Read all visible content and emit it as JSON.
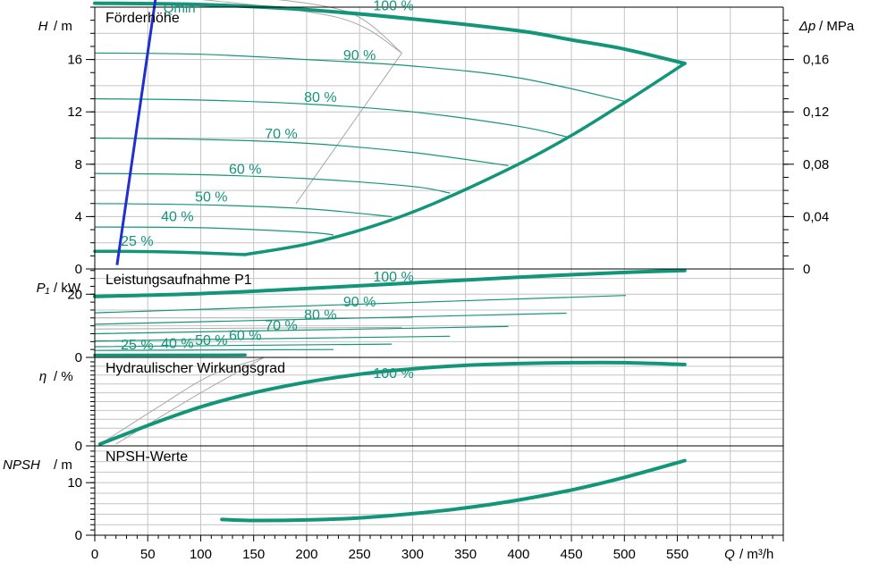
{
  "chart_data": {
    "type": "line",
    "colors": {
      "curve": "#13957a",
      "qmin": "#1f2fd0",
      "grid": "#c4c4c4",
      "iso": "#a8a8a8",
      "axis": "#000000"
    },
    "x": {
      "label_var": "Q",
      "label_unit": "/ m³/h",
      "ticks": [
        0,
        50,
        100,
        150,
        200,
        250,
        300,
        350,
        400,
        450,
        500,
        550
      ],
      "range": [
        0,
        650
      ]
    },
    "panels": [
      {
        "id": "head",
        "title": "Förderhöhe",
        "ylabel_var": "H",
        "ylabel_unit": "/ m",
        "ylim": [
          0,
          20
        ],
        "yticks": [
          0,
          4,
          8,
          12,
          16
        ],
        "right_axis": {
          "label_var": "Δp",
          "label_unit": "/ MPa",
          "ticks": [
            {
              "value": 0,
              "label": "0"
            },
            {
              "value": 0.04,
              "label": "0,04"
            },
            {
              "value": 0.08,
              "label": "0,08"
            },
            {
              "value": 0.12,
              "label": "0,12"
            },
            {
              "value": 0.16,
              "label": "0,16"
            }
          ]
        },
        "speed_curves": [
          {
            "name": "100 %",
            "x": [
              0,
              100,
              200,
              300,
              400,
              450,
              500,
              557
            ],
            "y": [
              20.3,
              20.2,
              19.8,
              19.1,
              18.2,
              17.5,
              16.8,
              15.7
            ],
            "label_at": [
              282,
              20.1
            ]
          },
          {
            "name": "90 %",
            "x": [
              0,
              100,
              200,
              300,
              400,
              501
            ],
            "y": [
              16.5,
              16.4,
              16.0,
              15.5,
              14.6,
              12.8
            ],
            "label_at": [
              250,
              16.3
            ]
          },
          {
            "name": "80 %",
            "x": [
              0,
              100,
              200,
              300,
              400,
              445
            ],
            "y": [
              13.0,
              12.9,
              12.6,
              12.0,
              10.9,
              10.1
            ],
            "label_at": [
              213,
              13.1
            ]
          },
          {
            "name": "70 %",
            "x": [
              0,
              100,
              200,
              300,
              390
            ],
            "y": [
              10.0,
              9.9,
              9.6,
              8.9,
              7.9
            ],
            "label_at": [
              176,
              10.3
            ]
          },
          {
            "name": "60 %",
            "x": [
              0,
              100,
              200,
              300,
              335
            ],
            "y": [
              7.3,
              7.2,
              6.9,
              6.3,
              5.8
            ],
            "label_at": [
              142,
              7.6
            ]
          },
          {
            "name": "50 %",
            "x": [
              0,
              100,
              200,
              280
            ],
            "y": [
              5.0,
              4.9,
              4.6,
              4.0
            ],
            "label_at": [
              110,
              5.5
            ]
          },
          {
            "name": "40 %",
            "x": [
              0,
              100,
              200,
              225
            ],
            "y": [
              3.2,
              3.15,
              2.8,
              2.6
            ],
            "label_at": [
              78,
              4.0
            ]
          },
          {
            "name": "25 %",
            "x": [
              0,
              70,
              142
            ],
            "y": [
              1.35,
              1.3,
              1.1
            ],
            "label_at": [
              40,
              2.1
            ]
          }
        ],
        "qmin_line": {
          "name": "Qmin",
          "x": [
            21,
            58
          ],
          "y": [
            0.3,
            21.0
          ],
          "label_at": [
            58,
            20.0
          ]
        },
        "limit_curve": {
          "x": [
            142,
            200,
            260,
            320,
            400,
            450,
            500,
            557
          ],
          "y": [
            1.1,
            1.9,
            3.2,
            5.0,
            8.0,
            10.2,
            12.7,
            15.7
          ]
        },
        "iso_efficiency_lines": [
          {
            "x": [
              88,
              230,
              290
            ],
            "y": [
              20.7,
              19.2,
              16.5
            ]
          },
          {
            "x": [
              150,
              240,
              290
            ],
            "y": [
              20.8,
              19.6,
              16.5
            ]
          },
          {
            "x": [
              290,
              190
            ],
            "y": [
              16.5,
              5.0
            ]
          }
        ]
      },
      {
        "id": "power",
        "title": "Leistungsaufnahme P1",
        "ylabel_var": "P₁",
        "ylabel_unit": "/ kW",
        "ylim": [
          0,
          28
        ],
        "yticks": [
          0,
          20
        ],
        "speed_curves": [
          {
            "name": "100 %",
            "x": [
              0,
              100,
              200,
              300,
              400,
              500,
              557
            ],
            "y": [
              19.3,
              20.2,
              21.8,
              23.6,
              25.4,
              26.9,
              27.5
            ],
            "label_at": [
              282,
              25.5
            ]
          },
          {
            "name": "90 %",
            "x": [
              0,
              501
            ],
            "y": [
              14.1,
              19.6
            ],
            "label_at": [
              250,
              17.6
            ]
          },
          {
            "name": "80 %",
            "x": [
              0,
              445
            ],
            "y": [
              10.5,
              14.0
            ],
            "label_at": [
              213,
              13.5
            ]
          },
          {
            "name": "70 %",
            "x": [
              0,
              390
            ],
            "y": [
              7.5,
              9.8
            ],
            "label_at": [
              176,
              10.1
            ]
          },
          {
            "name": "60 %",
            "x": [
              0,
              335
            ],
            "y": [
              5.2,
              6.7
            ],
            "label_at": [
              142,
              7.0
            ]
          },
          {
            "name": "50 %",
            "x": [
              0,
              280
            ],
            "y": [
              3.4,
              4.2
            ],
            "label_at": [
              110,
              5.4
            ]
          },
          {
            "name": "40 %",
            "x": [
              0,
              225
            ],
            "y": [
              2.2,
              2.5
            ],
            "label_at": [
              78,
              4.4
            ]
          },
          {
            "name": "25 %",
            "x": [
              0,
              142
            ],
            "y": [
              0.7,
              0.75
            ],
            "label_at": [
              40,
              4.0
            ]
          }
        ],
        "iso_efficiency_lines": [
          {
            "x": [
              0,
              300
            ],
            "y": [
              12.5,
              12.5
            ]
          },
          {
            "x": [
              0,
              290
            ],
            "y": [
              9.0,
              9.5
            ]
          }
        ]
      },
      {
        "id": "efficiency",
        "title": "Hydraulischer Wirkungsgrad",
        "ylabel_var": "η",
        "ylabel_unit": "/ %",
        "ylim": [
          0,
          100
        ],
        "yticks": [
          0
        ],
        "speed_curves": [
          {
            "name": "100 %",
            "x": [
              5,
              50,
              100,
              150,
              200,
              250,
              300,
              350,
              400,
              450,
              500,
              557
            ],
            "y": [
              2,
              23,
              44,
              60,
              72,
              81,
              87,
              91,
              93,
              94,
              94,
              92
            ],
            "label_at": [
              282,
              82
            ]
          }
        ],
        "iso_efficiency_lines": [
          {
            "x": [
              5,
              60,
              110,
              160
            ],
            "y": [
              2,
              44,
              80,
              100
            ]
          },
          {
            "x": [
              20,
              100,
              160
            ],
            "y": [
              2,
              60,
              100
            ]
          }
        ]
      },
      {
        "id": "npsh",
        "title": "NPSH-Werte",
        "ylabel_var": "NPSH",
        "ylabel_unit": "/ m",
        "ylim": [
          0,
          17
        ],
        "yticks": [
          0,
          10
        ],
        "speed_curves": [
          {
            "name": "100 %",
            "x": [
              120,
              150,
              200,
              250,
              300,
              350,
              400,
              450,
              500,
              557
            ],
            "y": [
              3.0,
              2.8,
              2.9,
              3.3,
              4.1,
              5.2,
              6.7,
              8.6,
              11.0,
              14.2
            ]
          }
        ]
      }
    ]
  }
}
